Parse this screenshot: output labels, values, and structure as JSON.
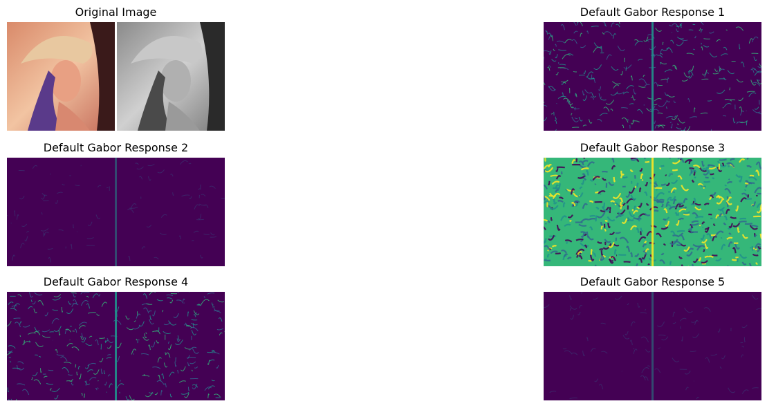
{
  "colors": {
    "viridis_dark": "#440154",
    "viridis_blue": "#31688e",
    "viridis_teal": "#21918c",
    "viridis_green": "#35b779",
    "viridis_yellow": "#fde725",
    "photo_skin": "#e8a083",
    "photo_hair": "#5a3a8a",
    "photo_bg": "#f0c0a0"
  },
  "panels": [
    {
      "key": "original",
      "title": "Original Image",
      "style": "photo"
    },
    {
      "key": "resp1",
      "title": "Default Gabor Response 1",
      "style": "medium"
    },
    {
      "key": "resp2",
      "title": "Default Gabor Response 2",
      "style": "faint"
    },
    {
      "key": "resp3",
      "title": "Default Gabor Response 3",
      "style": "bright"
    },
    {
      "key": "resp4",
      "title": "Default Gabor Response 4",
      "style": "medium"
    },
    {
      "key": "resp5",
      "title": "Default Gabor Response 5",
      "style": "faint"
    }
  ]
}
